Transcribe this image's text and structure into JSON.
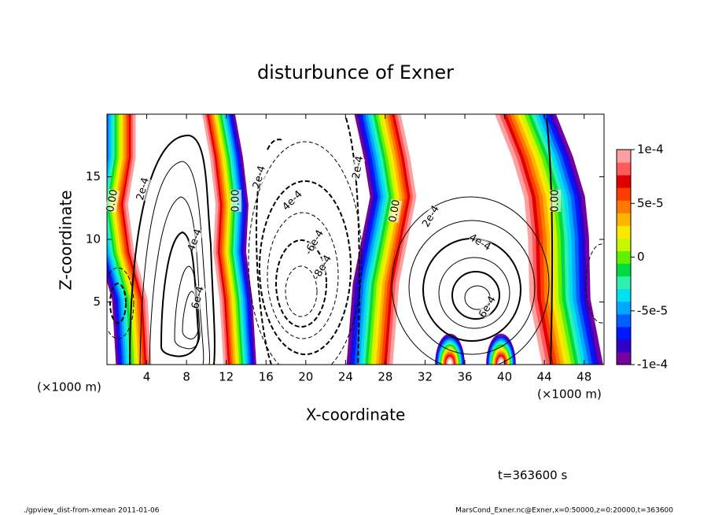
{
  "chart_data": {
    "type": "contour",
    "title": "disturbunce of Exner",
    "x_label": "X-coordinate",
    "y_label": "Z-coordinate",
    "x_unit": "(×1000 m)",
    "y_unit": "(×1000 m)",
    "time_label": "t=363600 s",
    "footer_left": "./gpview_dist-from-xmean  2011-01-06",
    "footer_right": "MarsCond_Exner.nc@Exner,x=0:50000,z=0:20000,t=363600",
    "xlim": [
      0,
      50
    ],
    "xticks": [
      4,
      8,
      12,
      16,
      20,
      24,
      28,
      32,
      36,
      40,
      44,
      48
    ],
    "ylim": [
      0,
      20
    ],
    "yticks": [
      5,
      10,
      15
    ],
    "colorbar_lim": [
      -0.0001,
      0.0001
    ],
    "colorbar_ticks": [
      {
        "value": 0.0001,
        "label": "1e-4"
      },
      {
        "value": 5e-05,
        "label": "5e-5"
      },
      0,
      {
        "value": -5e-05,
        "label": "-5e-5"
      },
      {
        "value": -0.0001,
        "label": "-1e-4"
      }
    ],
    "colormap": [
      "#7800a0",
      "#3000c8",
      "#0018ff",
      "#0060ff",
      "#00a8ff",
      "#00e0f0",
      "#30f0b0",
      "#00dc40",
      "#60f000",
      "#c8f800",
      "#ffe800",
      "#ffb400",
      "#ff7800",
      "#ff3c00",
      "#e00000",
      "#ff5a5a",
      "#ffa0a0"
    ],
    "contour_labels": [
      "0.00",
      "2e-4",
      "4e-4",
      "6e-4",
      "0.00",
      "2e-4",
      "4e-4",
      "-6e-4",
      "-8e-4",
      "-2e-4",
      "0.00",
      "2e-4",
      "4e-4",
      "6e-4",
      "0.00"
    ]
  }
}
